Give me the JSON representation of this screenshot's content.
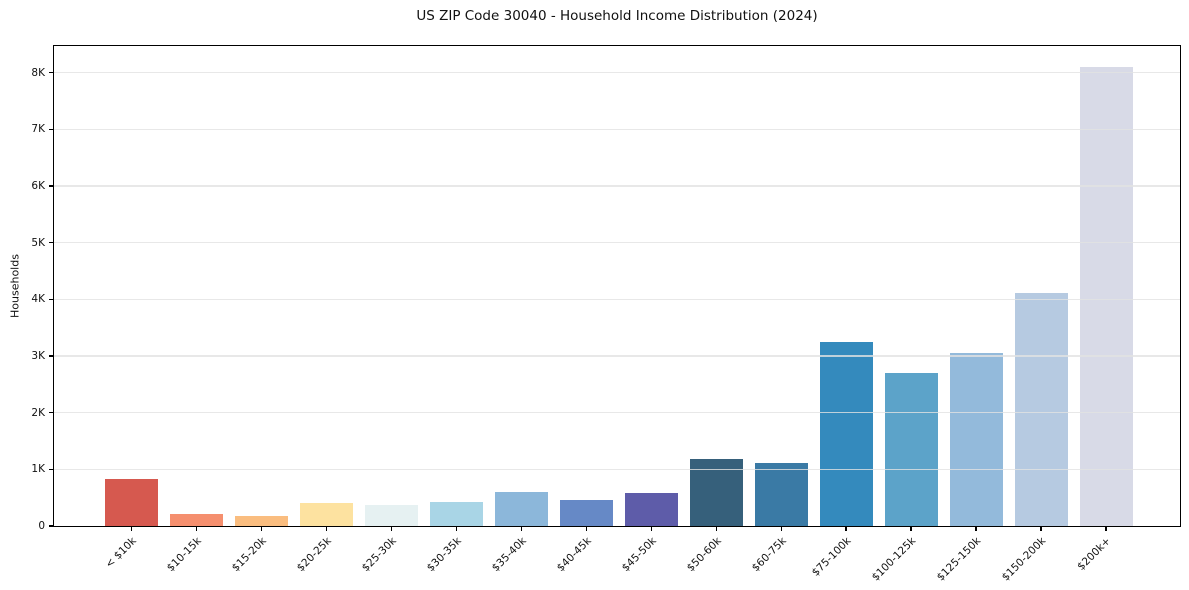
{
  "chart_data": {
    "type": "bar",
    "title": "US ZIP Code 30040 - Household Income Distribution (2024)",
    "xlabel": "",
    "ylabel": "Households",
    "categories": [
      "< $10k",
      "$10-15k",
      "$15-20k",
      "$20-25k",
      "$25-30k",
      "$30-35k",
      "$35-40k",
      "$40-45k",
      "$45-50k",
      "$50-60k",
      "$60-75k",
      "$75-100k",
      "$100-125k",
      "$125-150k",
      "$150-200k",
      "$200k+"
    ],
    "values": [
      830,
      220,
      170,
      400,
      370,
      430,
      600,
      460,
      590,
      1190,
      1120,
      3240,
      2700,
      3050,
      4120,
      8100
    ],
    "bar_colors": [
      "#d6594f",
      "#f58f6e",
      "#fabd7f",
      "#fde2a0",
      "#e6f1f2",
      "#a9d5e6",
      "#8cb7da",
      "#6689c6",
      "#5e5ca9",
      "#36607b",
      "#3a7aa5",
      "#348abd",
      "#5ca3c9",
      "#93badb",
      "#b6cae1",
      "#d8dae7"
    ],
    "ylim": [
      0,
      8505
    ],
    "yticks": [
      {
        "value": 0,
        "label": "0"
      },
      {
        "value": 1000,
        "label": "1K"
      },
      {
        "value": 2000,
        "label": "2K"
      },
      {
        "value": 3000,
        "label": "3K"
      },
      {
        "value": 4000,
        "label": "4K"
      },
      {
        "value": 5000,
        "label": "5K"
      },
      {
        "value": 6000,
        "label": "6K"
      },
      {
        "value": 7000,
        "label": "7K"
      },
      {
        "value": 8000,
        "label": "8K"
      }
    ],
    "grid": "horizontal",
    "legend": "none",
    "background_color": "#ffffff",
    "frame_color": "#000000",
    "gridline_color": "#e4e4e4",
    "x_label_rotation_deg": 45
  }
}
